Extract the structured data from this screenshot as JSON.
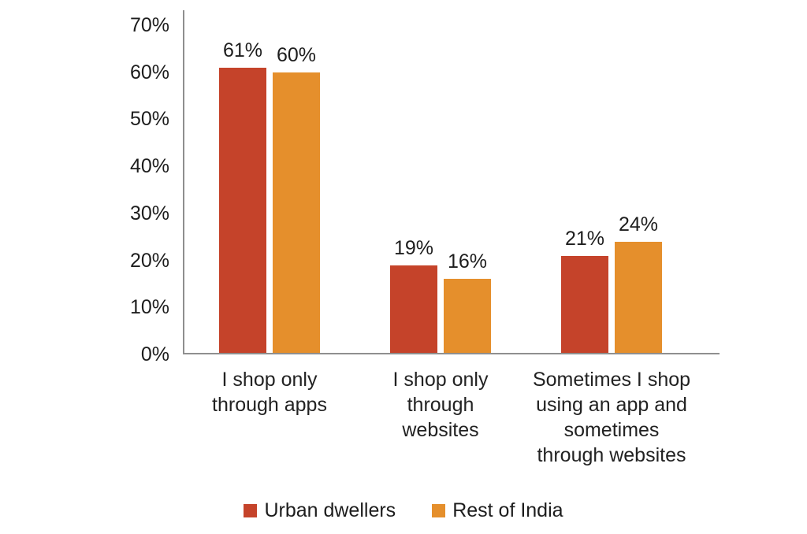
{
  "chart_data": {
    "type": "bar",
    "title": "",
    "xlabel": "",
    "ylabel": "",
    "categories": [
      "I shop only\nthrough apps",
      "I shop only\nthrough\nwebsites",
      "Sometimes I shop\nusing an app and\nsometimes\nthrough websites"
    ],
    "series": [
      {
        "name": "Urban dwellers",
        "color": "#c5432a",
        "values": [
          61,
          19,
          21
        ]
      },
      {
        "name": "Rest of India",
        "color": "#e58f2c",
        "values": [
          60,
          16,
          24
        ]
      }
    ],
    "value_labels": [
      [
        "61%",
        "19%",
        "21%"
      ],
      [
        "60%",
        "16%",
        "24%"
      ]
    ],
    "ylim": [
      0,
      70
    ],
    "yticks": [
      "0%",
      "10%",
      "20%",
      "30%",
      "40%",
      "50%",
      "60%",
      "70%"
    ],
    "grid": false,
    "legend_position": "bottom",
    "colors": {
      "axis": "#8f8f8f",
      "text": "#1d1d1d",
      "background": "#ffffff"
    }
  }
}
